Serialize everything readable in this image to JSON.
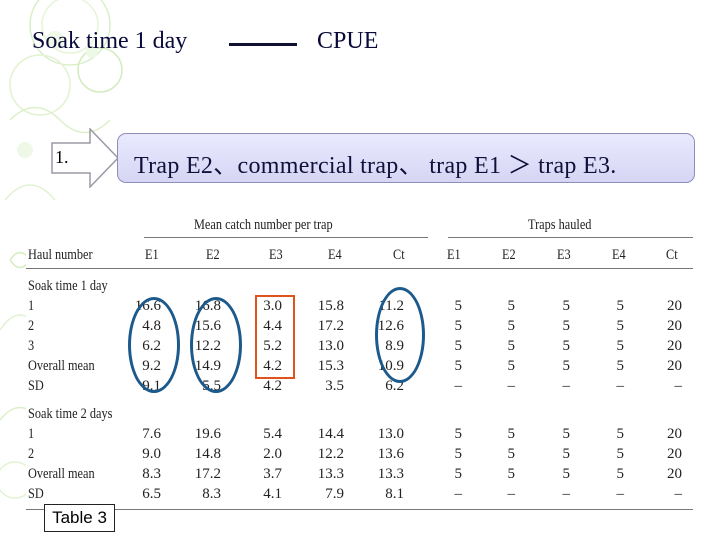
{
  "slide": {
    "title_left": "Soak time 1 day",
    "title_right": "CPUE",
    "step_number": "1.",
    "callout": "Trap E2、commercial trap、 trap E1 ＞ trap E3.",
    "table_label": "Table 3"
  },
  "table": {
    "group_headers": [
      "Mean catch number per trap",
      "Traps hauled"
    ],
    "columns": [
      "Haul number",
      "E1",
      "E2",
      "E3",
      "E4",
      "Ct",
      "E1",
      "E2",
      "E3",
      "E4",
      "Ct"
    ],
    "rows": [
      {
        "label": "Soak time 1 day",
        "values": []
      },
      {
        "label": "1",
        "values": [
          "16.6",
          "16.8",
          "3.0",
          "15.8",
          "11.2",
          "5",
          "5",
          "5",
          "5",
          "20"
        ]
      },
      {
        "label": "2",
        "values": [
          "4.8",
          "15.6",
          "4.4",
          "17.2",
          "12.6",
          "5",
          "5",
          "5",
          "5",
          "20"
        ]
      },
      {
        "label": "3",
        "values": [
          "6.2",
          "12.2",
          "5.2",
          "13.0",
          "8.9",
          "5",
          "5",
          "5",
          "5",
          "20"
        ]
      },
      {
        "label": "Overall mean",
        "values": [
          "9.2",
          "14.9",
          "4.2",
          "15.3",
          "10.9",
          "5",
          "5",
          "5",
          "5",
          "20"
        ]
      },
      {
        "label": "SD",
        "values": [
          "9.1",
          "5.5",
          "4.2",
          "3.5",
          "6.2",
          "–",
          "–",
          "–",
          "–",
          "–"
        ]
      },
      {
        "label": "Soak time 2 days",
        "values": []
      },
      {
        "label": "1",
        "values": [
          "7.6",
          "19.6",
          "5.4",
          "14.4",
          "13.0",
          "5",
          "5",
          "5",
          "5",
          "20"
        ]
      },
      {
        "label": "2",
        "values": [
          "9.0",
          "14.8",
          "2.0",
          "12.2",
          "13.6",
          "5",
          "5",
          "5",
          "5",
          "20"
        ]
      },
      {
        "label": "Overall mean",
        "values": [
          "8.3",
          "17.2",
          "3.7",
          "13.3",
          "13.3",
          "5",
          "5",
          "5",
          "5",
          "20"
        ]
      },
      {
        "label": "SD",
        "values": [
          "6.5",
          "8.3",
          "4.1",
          "7.9",
          "8.1",
          "–",
          "–",
          "–",
          "–",
          "–"
        ]
      }
    ]
  },
  "colors": {
    "oval_highlight": "#1d5a8c",
    "rect_highlight": "#e0531c",
    "callout_fill": "#dcdcf6"
  }
}
